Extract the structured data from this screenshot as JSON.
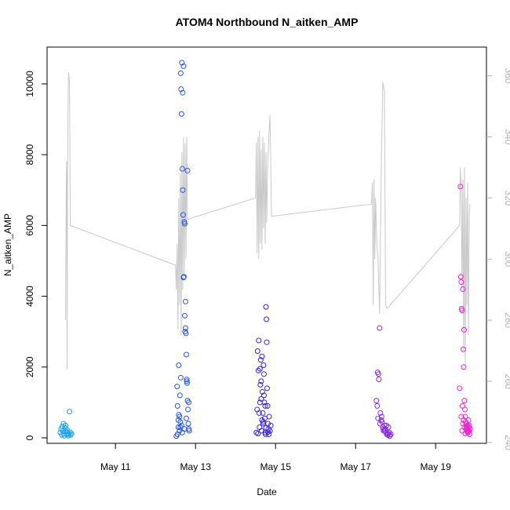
{
  "chart_data": {
    "type": "scatter",
    "title": "ATOM4 Northbound N_aitken_AMP",
    "x_label": "Date",
    "y_label": "N_aitken_AMP",
    "xlim": [
      9.29,
      20.27
    ],
    "xticks": [
      {
        "value": 11,
        "label": "May 11"
      },
      {
        "value": 13,
        "label": "May 13"
      },
      {
        "value": 15,
        "label": "May 15"
      },
      {
        "value": 17,
        "label": "May 17"
      },
      {
        "value": 19,
        "label": "May 19"
      }
    ],
    "ylim": [
      -155,
      11040
    ],
    "yticks": [
      0,
      2000,
      4000,
      6000,
      8000,
      10000
    ],
    "y2lim": [
      239.7,
      369.4
    ],
    "y2ticks": [
      240,
      260,
      280,
      300,
      320,
      340,
      360
    ],
    "series": [
      {
        "color": "#1ea0f0",
        "x": [
          9.62,
          9.64,
          9.66,
          9.67,
          9.69,
          9.7,
          9.71,
          9.72,
          9.74,
          9.75,
          9.76,
          9.78,
          9.79,
          9.8,
          9.82,
          9.83,
          9.85,
          9.86,
          9.88,
          9.9
        ],
        "values": [
          150,
          250,
          80,
          320,
          200,
          400,
          120,
          60,
          280,
          350,
          180,
          90,
          220,
          140,
          60,
          100,
          740,
          160,
          80,
          120
        ]
      },
      {
        "color": "#2255f0",
        "x": [
          12.52,
          12.54,
          12.55,
          12.57,
          12.58,
          12.6,
          12.61,
          12.62,
          12.63,
          12.64,
          12.65,
          12.66,
          12.67,
          12.68,
          12.69,
          12.7,
          12.71,
          12.72,
          12.73,
          12.74,
          12.75,
          12.76,
          12.77,
          12.78,
          12.79,
          12.8,
          12.81,
          12.82,
          12.83,
          12.84,
          12.55,
          12.6,
          12.65,
          12.7,
          12.75,
          12.8,
          12.58,
          12.63,
          12.68,
          12.73,
          12.78,
          12.83,
          12.57,
          12.62,
          12.67,
          12.72,
          12.77
        ],
        "values": [
          50,
          1450,
          900,
          300,
          2050,
          600,
          1200,
          450,
          10300,
          9850,
          9150,
          10600,
          7600,
          7000,
          6300,
          10500,
          4550,
          6100,
          3450,
          3000,
          3100,
          2950,
          2350,
          1650,
          1550,
          1050,
          800,
          400,
          250,
          200,
          100,
          200,
          350,
          4530,
          3850,
          7550,
          650,
          1700,
          9750,
          6050,
          1600,
          1000,
          500,
          300,
          150,
          250,
          550
        ]
      },
      {
        "color": "#3a20e8",
        "x": [
          14.52,
          14.54,
          14.55,
          14.57,
          14.58,
          14.6,
          14.61,
          14.62,
          14.63,
          14.64,
          14.65,
          14.66,
          14.67,
          14.68,
          14.69,
          14.7,
          14.71,
          14.72,
          14.73,
          14.74,
          14.75,
          14.76,
          14.77,
          14.78,
          14.79,
          14.8,
          14.81,
          14.82,
          14.83,
          14.84,
          14.86,
          14.88,
          14.56,
          14.61,
          14.66,
          14.71,
          14.76,
          14.81,
          14.59,
          14.64,
          14.69,
          14.74
        ],
        "values": [
          150,
          800,
          2450,
          1900,
          2750,
          300,
          1000,
          1500,
          2200,
          1600,
          200,
          2300,
          1300,
          700,
          400,
          2050,
          1800,
          1000,
          550,
          150,
          100,
          3700,
          3350,
          2700,
          1400,
          900,
          400,
          250,
          100,
          600,
          200,
          350,
          120,
          1950,
          500,
          1200,
          280,
          160,
          700,
          1100,
          450,
          900
        ]
      },
      {
        "color": "#8a2be2",
        "x": [
          17.52,
          17.54,
          17.55,
          17.57,
          17.58,
          17.6,
          17.62,
          17.64,
          17.66,
          17.68,
          17.7,
          17.72,
          17.74,
          17.76,
          17.78,
          17.8,
          17.82,
          17.84,
          17.86,
          17.88,
          17.56,
          17.61,
          17.65,
          17.69,
          17.73,
          17.77,
          17.81,
          17.85
        ],
        "values": [
          1050,
          900,
          1850,
          1800,
          1650,
          3100,
          700,
          500,
          450,
          300,
          200,
          350,
          250,
          150,
          100,
          80,
          300,
          150,
          60,
          100,
          550,
          400,
          600,
          250,
          200,
          350,
          120,
          50
        ]
      },
      {
        "color": "#f020d0",
        "x": [
          19.6,
          19.62,
          19.63,
          19.64,
          19.65,
          19.66,
          19.67,
          19.68,
          19.69,
          19.7,
          19.71,
          19.72,
          19.73,
          19.74,
          19.75,
          19.76,
          19.77,
          19.78,
          19.79,
          19.8,
          19.81,
          19.82,
          19.83,
          19.84,
          19.85,
          19.86,
          19.64,
          19.68,
          19.72,
          19.76,
          19.8,
          19.84,
          19.66,
          19.7,
          19.74,
          19.78,
          19.82
        ],
        "values": [
          1400,
          7100,
          4550,
          4400,
          3650,
          3600,
          900,
          4200,
          2500,
          2000,
          3050,
          1050,
          800,
          600,
          450,
          400,
          300,
          200,
          350,
          250,
          150,
          500,
          300,
          200,
          100,
          250,
          600,
          400,
          300,
          250,
          150,
          350,
          200,
          500,
          120,
          280,
          180
        ]
      }
    ],
    "line": {
      "color": "#c8c8c8",
      "axis": "y2",
      "x": [
        9.75,
        9.77,
        9.78,
        9.79,
        9.8,
        9.81,
        9.82,
        9.83,
        9.85,
        9.87,
        12.5,
        12.52,
        12.54,
        12.56,
        12.58,
        12.6,
        12.62,
        12.64,
        12.66,
        12.68,
        12.7,
        12.72,
        12.74,
        12.76,
        12.78,
        12.8,
        14.5,
        14.52,
        14.54,
        14.56,
        14.58,
        14.6,
        14.62,
        14.64,
        14.66,
        14.68,
        14.7,
        14.72,
        14.74,
        14.76,
        14.78,
        14.8,
        14.83,
        14.86,
        14.9,
        17.4,
        17.42,
        17.44,
        17.46,
        17.48,
        17.5,
        17.53,
        17.56,
        17.6,
        17.64,
        17.68,
        17.72,
        17.75,
        17.78,
        17.8,
        19.6,
        19.62,
        19.64,
        19.66,
        19.68,
        19.7,
        19.72,
        19.74,
        19.76,
        19.78,
        19.8,
        19.82,
        19.84,
        19.86
      ],
      "values": [
        280,
        328,
        332,
        264,
        318,
        345,
        356,
        361,
        358,
        311,
        298,
        290,
        305,
        277,
        320,
        285,
        328,
        275,
        335,
        290,
        340,
        295,
        338,
        300,
        340,
        313,
        320,
        338,
        302,
        340,
        300,
        342,
        305,
        336,
        303,
        340,
        310,
        338,
        305,
        335,
        312,
        330,
        340,
        347,
        314,
        318,
        325,
        285,
        326,
        300,
        320,
        305,
        300,
        282,
        330,
        358,
        355,
        285,
        284,
        284,
        311,
        330,
        323,
        290,
        326,
        270,
        330,
        265,
        320,
        285,
        325,
        275,
        315,
        318
      ]
    }
  }
}
